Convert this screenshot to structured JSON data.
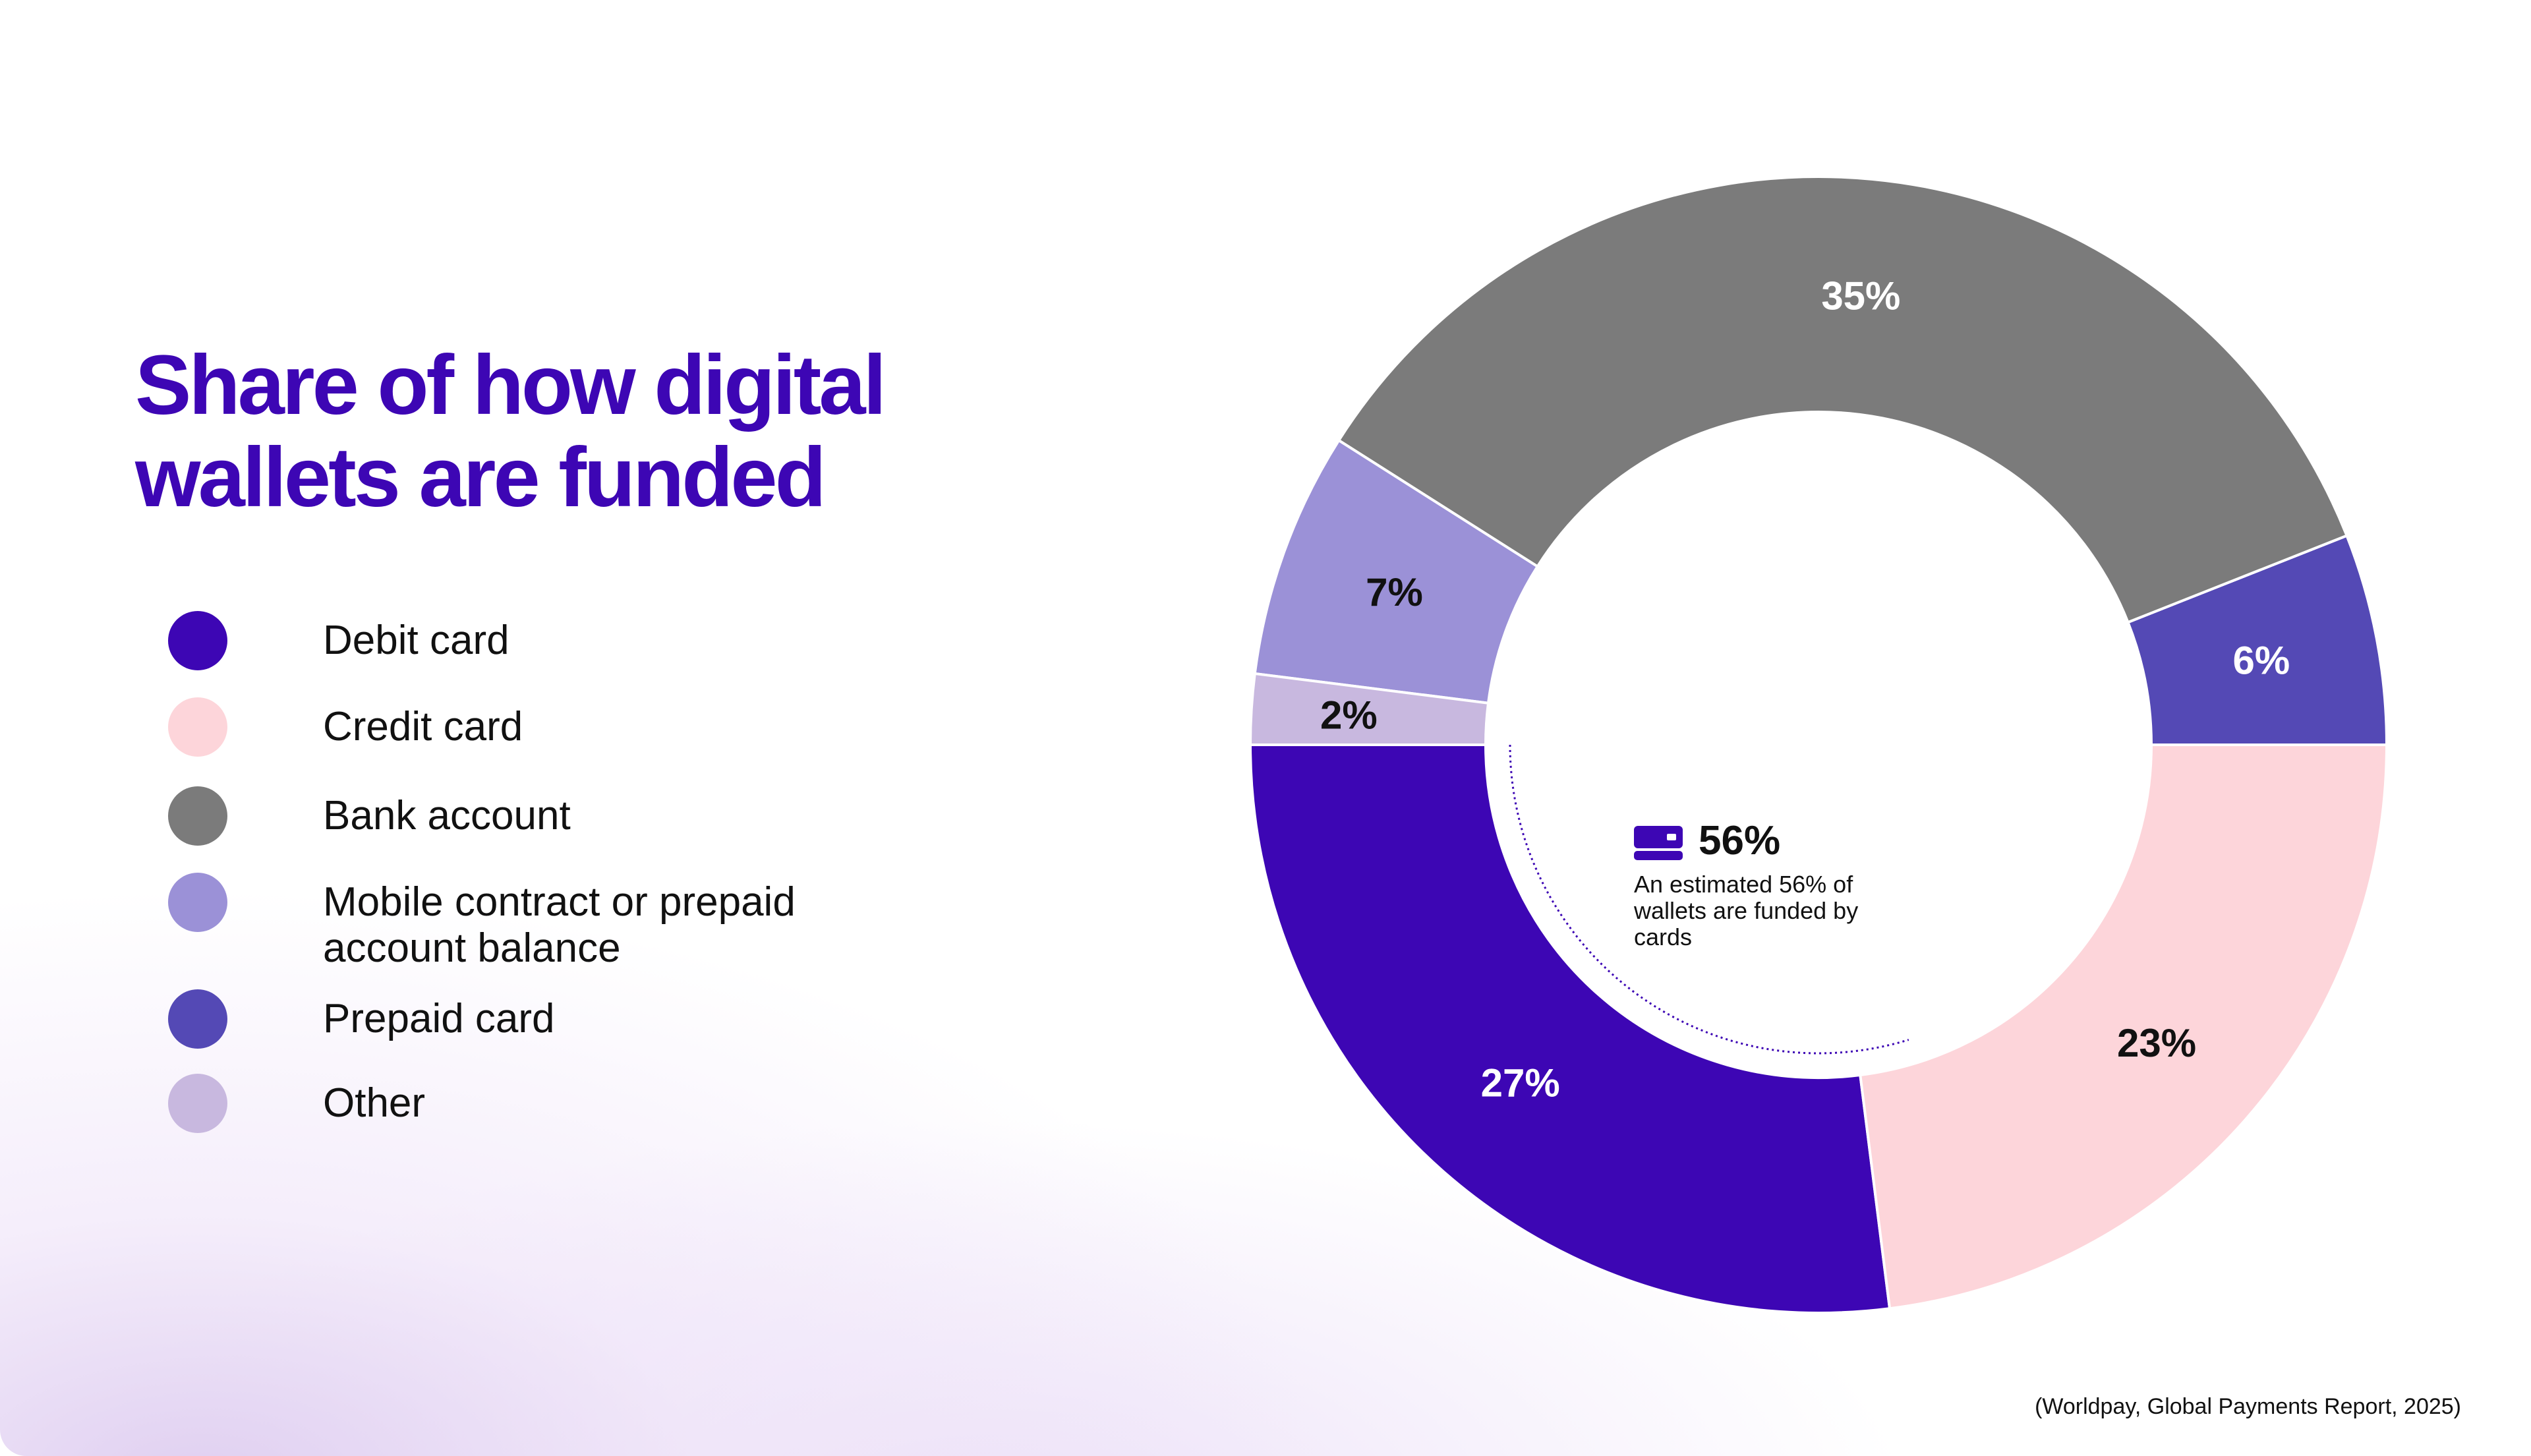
{
  "chart_data": {
    "type": "pie",
    "donut": true,
    "title": "Share of how digital wallets are funded",
    "categories": [
      "Debit card",
      "Credit card",
      "Prepaid card",
      "Bank account",
      "Mobile contract or prepaid account balance",
      "Other"
    ],
    "values": [
      27,
      23,
      6,
      35,
      7,
      2
    ],
    "data_labels": [
      "27%",
      "23%",
      "6%",
      "35%",
      "7%",
      "2%"
    ],
    "colors": [
      "#3d06b4",
      "#fdd5da",
      "#5449b5",
      "#7b7b7b",
      "#9b91d7",
      "#c8b8df"
    ],
    "label_colors": [
      "#ffffff",
      "#111111",
      "#ffffff",
      "#ffffff",
      "#111111",
      "#111111"
    ],
    "legend_placement": "left",
    "legend": [
      {
        "label": "Debit card",
        "color": "#3d06b4"
      },
      {
        "label": "Credit card",
        "color": "#fdd5da"
      },
      {
        "label": "Bank account",
        "color": "#7b7b7b"
      },
      {
        "label": "Mobile contract or prepaid account balance",
        "color": "#9b91d7"
      },
      {
        "label": "Prepaid card",
        "color": "#5449b5"
      },
      {
        "label": "Other",
        "color": "#c8b8df"
      }
    ],
    "annotation": {
      "icon": "credit-card-icon",
      "value": "56%",
      "text": "An estimated 56% of wallets are funded by cards"
    }
  },
  "source": "(Worldpay, Global Payments Report, 2025)",
  "accent_color": "#3d06b4"
}
